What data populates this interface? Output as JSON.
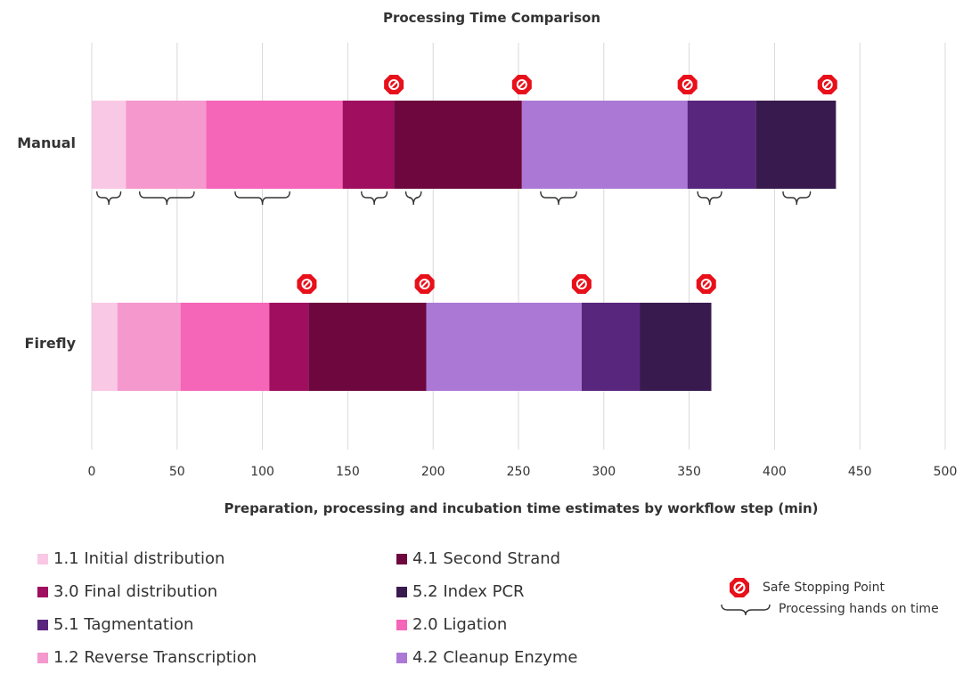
{
  "chart_data": {
    "type": "bar",
    "orientation": "horizontal",
    "stacked": true,
    "title": "Processing Time Comparison",
    "xlabel": "Preparation, processing and incubation time estimates by workflow step (min)",
    "ylabel": "",
    "xlim": [
      0,
      500
    ],
    "x_ticks": [
      "0",
      "50",
      "100",
      "150",
      "200",
      "250",
      "300",
      "350",
      "400",
      "450",
      "500"
    ],
    "grid": true,
    "categories": [
      "Manual",
      "Firefly"
    ],
    "series": [
      {
        "name": "1.1 Initial distribution",
        "color": "#f9c8e4",
        "values": [
          20,
          15
        ]
      },
      {
        "name": "1.2 Reverse Transcription",
        "color": "#f598cd",
        "values": [
          47,
          37
        ]
      },
      {
        "name": "2.0 Ligation",
        "color": "#f565b8",
        "values": [
          80,
          52
        ]
      },
      {
        "name": "3.0 Final distribution",
        "color": "#a00e60",
        "values": [
          30,
          23
        ]
      },
      {
        "name": "4.1 Second Strand",
        "color": "#6e073d",
        "values": [
          75,
          69
        ]
      },
      {
        "name": "4.2 Cleanup Enzyme",
        "color": "#ab78d6",
        "values": [
          97,
          91
        ]
      },
      {
        "name": "5.1 Tagmentation",
        "color": "#59267e",
        "values": [
          40,
          34
        ]
      },
      {
        "name": "5.2 Index PCR",
        "color": "#391a4f",
        "values": [
          47,
          42
        ]
      }
    ],
    "safe_stopping_points": {
      "Manual": [
        177,
        252,
        349,
        431
      ],
      "Firefly": [
        126,
        195,
        287,
        360
      ]
    },
    "hands_on_braces_manual": [
      [
        3,
        17
      ],
      [
        28,
        60
      ],
      [
        84,
        116
      ],
      [
        158,
        173
      ],
      [
        184,
        193
      ],
      [
        263,
        284
      ],
      [
        355,
        369
      ],
      [
        405,
        421
      ]
    ],
    "legend": {
      "items": [
        {
          "label": "1.1 Initial distribution",
          "color": "#f9c8e4"
        },
        {
          "label": "3.0 Final distribution",
          "color": "#a00e60"
        },
        {
          "label": "5.1 Tagmentation",
          "color": "#59267e"
        },
        {
          "label": "1.2 Reverse Transcription",
          "color": "#f598cd"
        },
        {
          "label": "4.1 Second Strand",
          "color": "#6e073d"
        },
        {
          "label": "5.2 Index PCR",
          "color": "#391a4f"
        },
        {
          "label": "2.0 Ligation",
          "color": "#f565b8"
        },
        {
          "label": "4.2 Cleanup Enzyme",
          "color": "#ab78d6"
        }
      ],
      "safe_stopping_label": "Safe Stopping Point",
      "hands_on_label": "Processing hands on time"
    }
  },
  "icons": {
    "safe_stop": "no-entry-icon",
    "hands_on": "bracket-icon"
  }
}
